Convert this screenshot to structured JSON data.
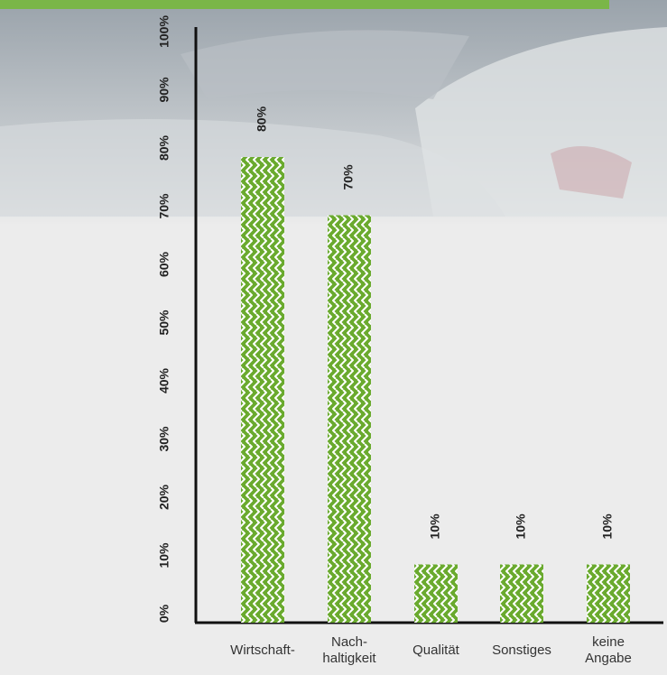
{
  "chart_data": {
    "type": "bar",
    "categories": [
      "Wirtschaft-",
      "Nach-\nhaltigkeit",
      "Qualität",
      "Sonstiges",
      "keine\nAngabe"
    ],
    "values": [
      80,
      70,
      10,
      10,
      10
    ],
    "value_labels": [
      "80%",
      "70%",
      "10%",
      "10%",
      "10%"
    ],
    "color": "#6aaa2e",
    "ylim": [
      0,
      100
    ],
    "yticks": [
      {
        "value": 0,
        "label": "0%"
      },
      {
        "value": 10,
        "label": "10%"
      },
      {
        "value": 20,
        "label": "20%"
      },
      {
        "value": 30,
        "label": "30%"
      },
      {
        "value": 40,
        "label": "40%"
      },
      {
        "value": 50,
        "label": "50%"
      },
      {
        "value": 60,
        "label": "60%"
      },
      {
        "value": 70,
        "label": "70%"
      },
      {
        "value": 80,
        "label": "80%"
      },
      {
        "value": 90,
        "label": "90%"
      },
      {
        "value": 100,
        "label": "100%"
      }
    ]
  }
}
